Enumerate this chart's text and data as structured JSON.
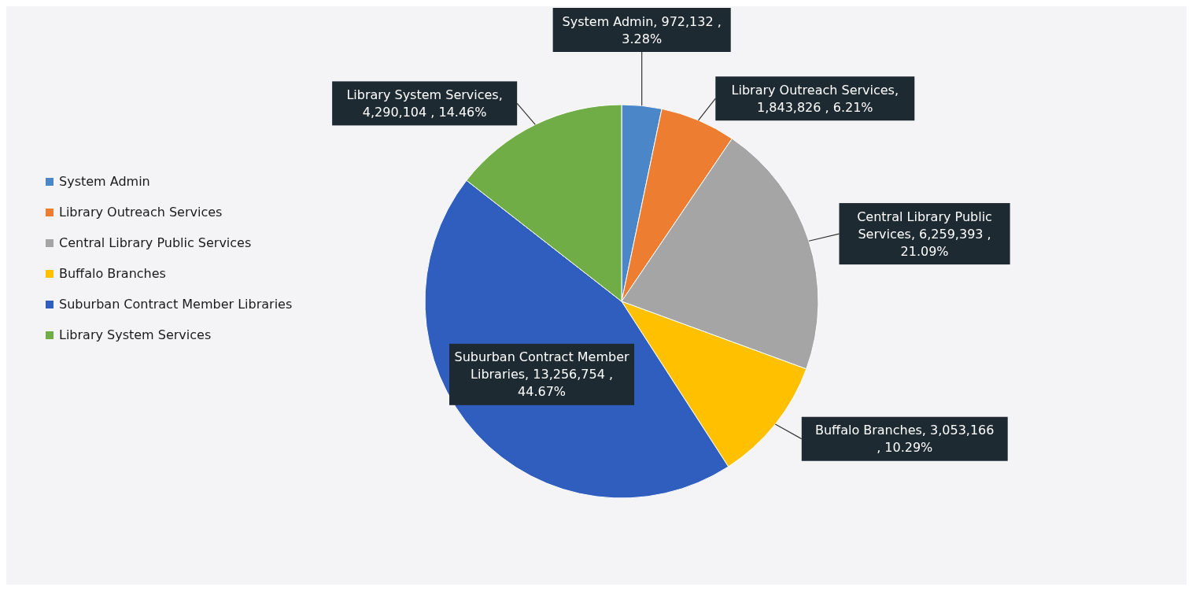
{
  "chart_data": {
    "type": "pie",
    "categories": [
      "System Admin",
      "Library Outreach Services",
      "Central Library Public Services",
      "Buffalo Branches",
      "Suburban Contract Member Libraries",
      "Library System Services"
    ],
    "values": [
      972132,
      1843826,
      6259393,
      3053166,
      13256754,
      4290104
    ],
    "colors": [
      "#4a86c8",
      "#ed7d31",
      "#a5a5a5",
      "#ffc000",
      "#2f5ebe",
      "#70ad47"
    ],
    "value_labels": [
      "System Admin, 972,132 , 3.28%",
      "Library Outreach Services, 1,843,826 , 6.21%",
      "Central Library Public Services, 6,259,393 , 21.09%",
      "Buffalo Branches, 3,053,166 , 10.29%",
      "Suburban Contract Member Libraries, 13,256,754 , 44.67%",
      "Library System Services, 4,290,104 , 14.46%"
    ],
    "legend": "left"
  }
}
